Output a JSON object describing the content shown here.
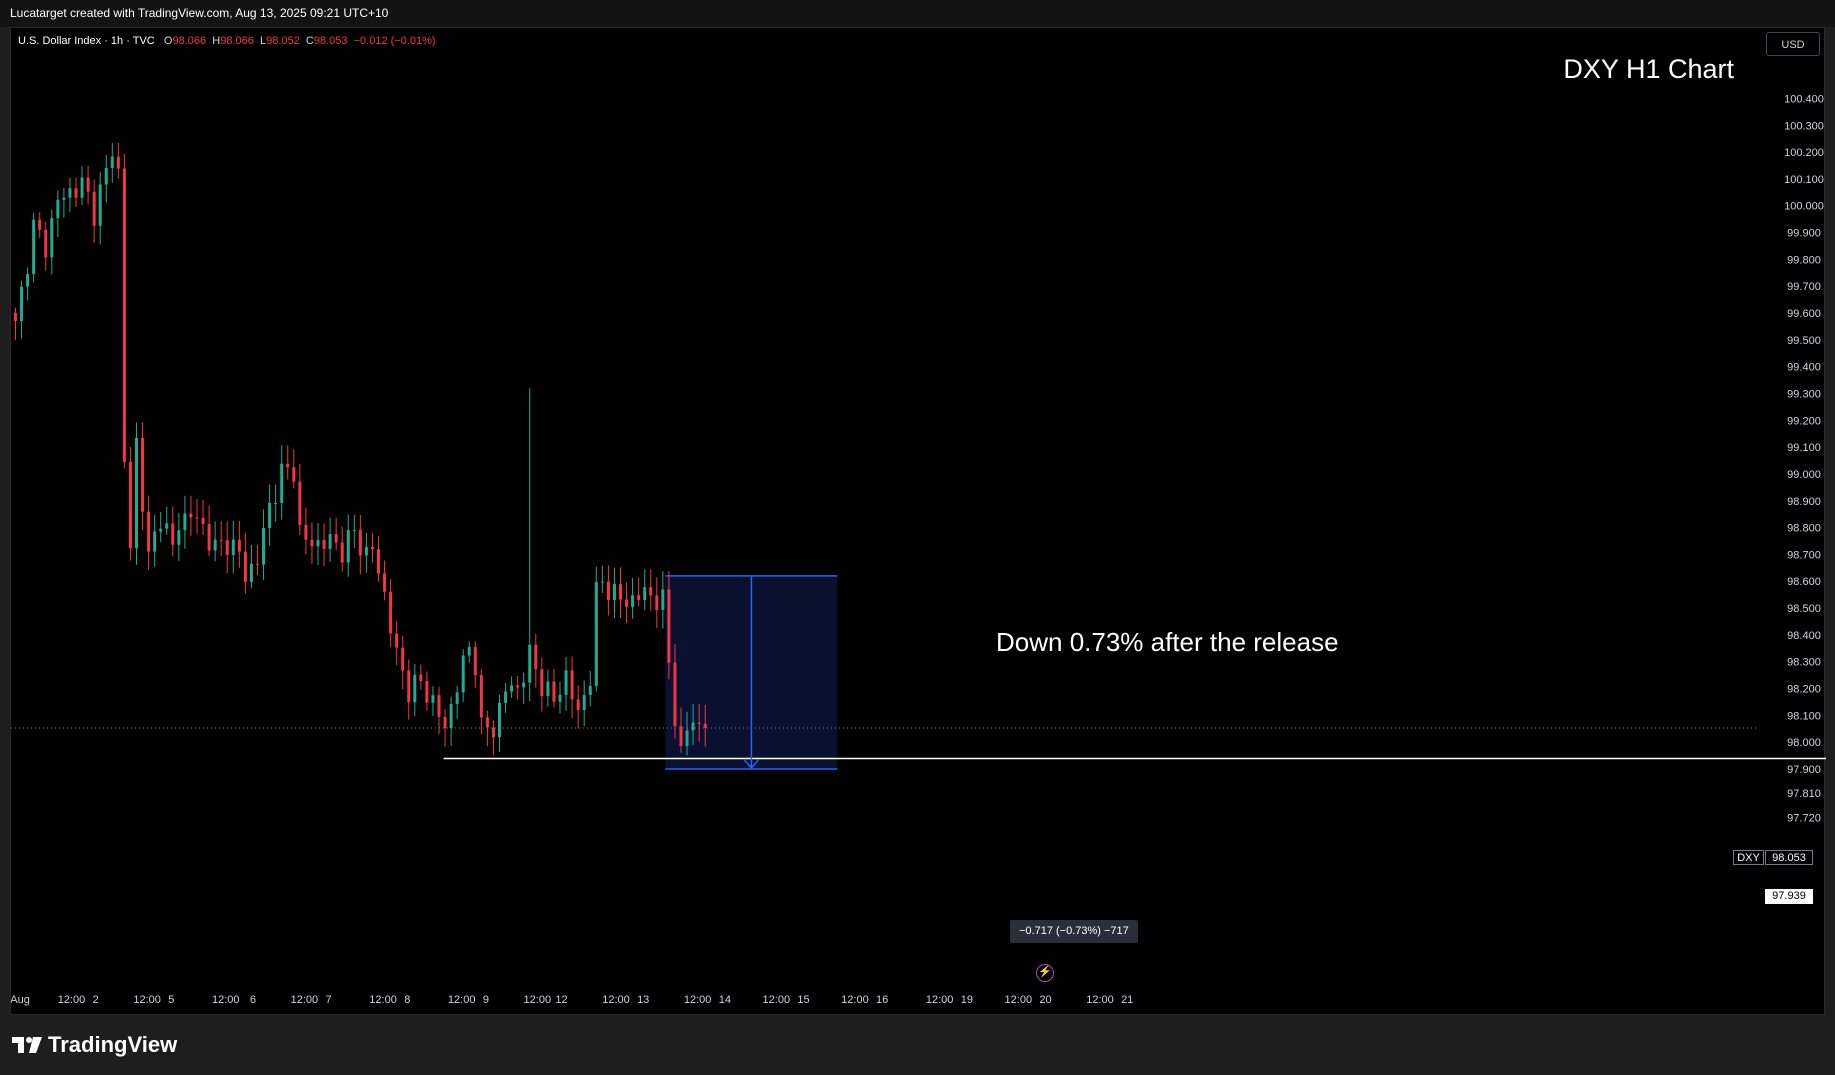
{
  "header": {
    "created_by": "Lucatarget created with TradingView.com, Aug 13, 2025 09:21 UTC+10"
  },
  "legend": {
    "symbol": "U.S. Dollar Index · 1h · TVC",
    "open_label": "O",
    "open": "98.066",
    "high_label": "H",
    "high": "98.066",
    "low_label": "L",
    "low": "98.052",
    "close_label": "C",
    "close": "98.053",
    "change": "−0.012 (−0.01%)"
  },
  "currency_button": "USD",
  "chart_title": "DXY H1 Chart",
  "annotation": "Down 0.73% after the release",
  "measure_label": "−0.717 (−0.73%) −717",
  "price_tags": {
    "symbol_name": "DXY",
    "symbol_value": "98.053",
    "line_value": "97.939"
  },
  "brand": "TradingView",
  "colors": {
    "up": "#22ab94",
    "down": "#f23645",
    "background": "#000000",
    "measure_box": "#0a1130",
    "measure_line": "#2962ff",
    "support_line": "#ffffff"
  },
  "chart_data": {
    "type": "candlestick",
    "interval": "1h",
    "y_axis": {
      "ticks": [
        "100.400",
        "100.300",
        "100.200",
        "100.100",
        "100.000",
        "99.900",
        "99.800",
        "99.700",
        "99.600",
        "99.500",
        "99.400",
        "99.300",
        "99.200",
        "99.100",
        "99.000",
        "98.900",
        "98.800",
        "98.700",
        "98.600",
        "98.500",
        "98.400",
        "98.300",
        "98.200",
        "98.100",
        "98.000",
        "97.900",
        "97.810",
        "97.720"
      ],
      "range": [
        97.68,
        100.48
      ]
    },
    "x_axis": {
      "ticks": [
        "Aug",
        "12:00",
        "2",
        "12:00",
        "5",
        "12:00",
        "6",
        "12:00",
        "7",
        "12:00",
        "8",
        "12:00",
        "9",
        "12:00",
        "12",
        "12:00",
        "13",
        "12:00",
        "14",
        "12:00",
        "15",
        "12:00",
        "16",
        "12:00",
        "19",
        "12:00",
        "20",
        "12:00",
        "21"
      ],
      "tick_positions": [
        1,
        9.5,
        13.5,
        22,
        26,
        35,
        39.5,
        48,
        52,
        61,
        65,
        74,
        78,
        86.5,
        90.5,
        99.5,
        104,
        113,
        117.5,
        126,
        130.5,
        139,
        143.5,
        153,
        157.5,
        166,
        170.5,
        179.5,
        184
      ]
    },
    "anchors": [
      [
        0,
        99.55
      ],
      [
        2,
        99.8
      ],
      [
        3,
        99.92
      ],
      [
        5,
        99.85
      ],
      [
        7,
        100.02
      ],
      [
        9,
        100.05
      ],
      [
        11,
        100.08
      ],
      [
        13,
        99.98
      ],
      [
        14,
        100.05
      ],
      [
        15,
        100.12
      ],
      [
        16,
        100.22
      ],
      [
        17,
        100.12
      ],
      [
        18,
        99.05
      ],
      [
        19,
        98.72
      ],
      [
        20,
        99.12
      ],
      [
        21,
        98.9
      ],
      [
        22,
        98.68
      ],
      [
        24,
        98.85
      ],
      [
        26,
        98.72
      ],
      [
        27,
        98.82
      ],
      [
        29,
        98.85
      ],
      [
        31,
        98.8
      ],
      [
        33,
        98.72
      ],
      [
        35,
        98.75
      ],
      [
        37,
        98.7
      ],
      [
        38,
        98.62
      ],
      [
        40,
        98.68
      ],
      [
        42,
        98.88
      ],
      [
        44,
        99.0
      ],
      [
        46,
        99.02
      ],
      [
        47,
        98.78
      ],
      [
        48,
        98.75
      ],
      [
        50,
        98.74
      ],
      [
        52,
        98.75
      ],
      [
        54,
        98.72
      ],
      [
        56,
        98.78
      ],
      [
        58,
        98.7
      ],
      [
        59,
        98.72
      ],
      [
        61,
        98.55
      ],
      [
        63,
        98.32
      ],
      [
        65,
        98.2
      ],
      [
        67,
        98.22
      ],
      [
        69,
        98.15
      ],
      [
        71,
        98.05
      ],
      [
        73,
        98.22
      ],
      [
        75,
        98.35
      ],
      [
        76,
        98.3
      ],
      [
        77,
        98.05
      ],
      [
        79,
        98.05
      ],
      [
        81,
        98.2
      ],
      [
        83,
        98.2
      ],
      [
        85,
        98.32
      ],
      [
        87,
        98.22
      ],
      [
        89,
        98.15
      ],
      [
        91,
        98.25
      ],
      [
        93,
        98.1
      ],
      [
        95,
        98.25
      ],
      [
        96,
        98.55
      ],
      [
        97,
        98.6
      ],
      [
        99,
        98.55
      ],
      [
        101,
        98.52
      ],
      [
        103,
        98.55
      ],
      [
        105,
        98.55
      ],
      [
        107,
        98.52
      ],
      [
        108,
        98.3
      ],
      [
        109,
        98.1
      ],
      [
        110,
        97.95
      ],
      [
        111,
        98.05
      ],
      [
        112,
        98.08
      ],
      [
        113,
        98.06
      ],
      [
        114,
        98.053
      ]
    ],
    "vertical_spike": {
      "candle": 85,
      "high": 99.32
    },
    "support_level": 97.939,
    "measure": {
      "from": 98.62,
      "to": 97.9,
      "change": -0.717,
      "percent": -0.73,
      "ticks": -717
    },
    "last_price": 98.053
  }
}
